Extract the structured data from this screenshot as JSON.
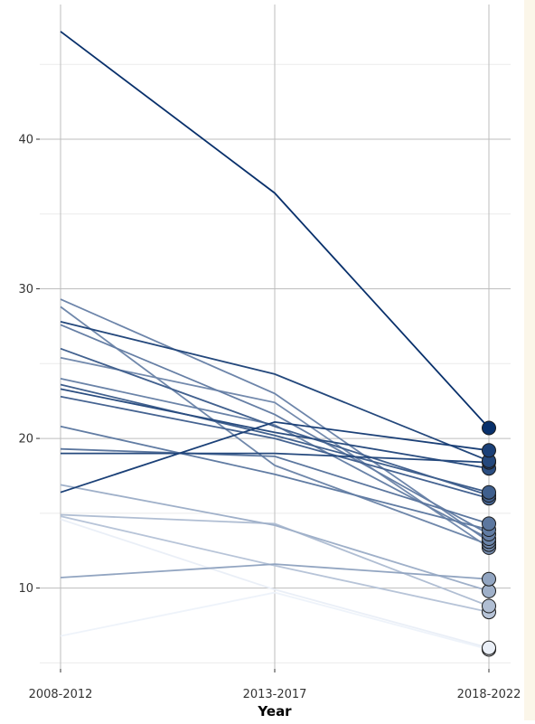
{
  "chart_data": {
    "type": "line",
    "title": "",
    "xlabel": "Year",
    "ylabel": "",
    "categories": [
      "2008-2012",
      "2013-2017",
      "2018-2022"
    ],
    "ylim": [
      4.6,
      49.0
    ],
    "yticks": [
      10,
      20,
      30,
      40
    ],
    "grid": true,
    "legend": "none",
    "color_scale": [
      "#eef3fa",
      "#08306b"
    ],
    "series": [
      {
        "values": [
          47.2,
          36.4,
          20.7
        ]
      },
      {
        "values": [
          16.4,
          21.1,
          19.2
        ]
      },
      {
        "values": [
          27.8,
          24.3,
          18.5
        ]
      },
      {
        "values": [
          23.3,
          20.4,
          18.0
        ]
      },
      {
        "values": [
          19.0,
          19.0,
          18.4
        ]
      },
      {
        "values": [
          26.0,
          20.8,
          16.2
        ]
      },
      {
        "values": [
          23.6,
          20.2,
          16.4
        ]
      },
      {
        "values": [
          22.8,
          20.0,
          16.0
        ]
      },
      {
        "values": [
          19.3,
          18.8,
          14.3
        ]
      },
      {
        "values": [
          20.8,
          17.6,
          13.9
        ]
      },
      {
        "values": [
          27.6,
          21.6,
          13.6
        ]
      },
      {
        "values": [
          29.3,
          23.0,
          13.1
        ]
      },
      {
        "values": [
          25.4,
          22.4,
          12.7
        ]
      },
      {
        "values": [
          24.0,
          20.9,
          13.3
        ]
      },
      {
        "values": [
          28.8,
          18.2,
          12.9
        ]
      },
      {
        "values": [
          10.7,
          11.6,
          10.6
        ]
      },
      {
        "values": [
          16.9,
          14.2,
          9.8
        ]
      },
      {
        "values": [
          14.9,
          14.3,
          8.8
        ]
      },
      {
        "values": [
          14.8,
          11.5,
          8.4
        ]
      },
      {
        "values": [
          14.6,
          9.9,
          6.0
        ]
      },
      {
        "values": [
          6.8,
          9.7,
          5.9
        ]
      }
    ]
  }
}
